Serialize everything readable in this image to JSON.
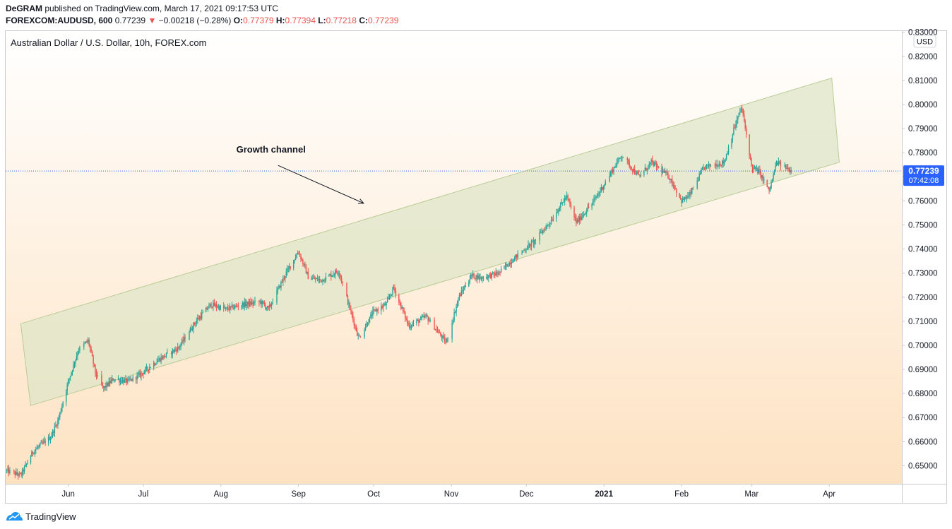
{
  "header": {
    "author": "DeGRAM",
    "published_text": "published on TradingView.com, March 17, 2021 09:17:53 UTC",
    "symbol": "FOREXCOM:AUDUSD, 600",
    "last": "0.77239",
    "change": "−0.00218 (−0.28%)",
    "o_label": "O:",
    "o": "0.77379",
    "h_label": "H:",
    "h": "0.77394",
    "l_label": "L:",
    "l": "0.77218",
    "c_label": "C:",
    "c": "0.77239"
  },
  "footer": {
    "brand": "TradingView"
  },
  "colors": {
    "up": "#26a69a",
    "down": "#ef5350",
    "channel_fill": "#dfe6c8",
    "channel_stroke": "#b9cc97",
    "bg_top": "#ffffff",
    "bg_bottom": "#fde2c2",
    "price_tag": "#2962ff",
    "price_line": "#2962ff"
  },
  "chart_data": {
    "type": "candlestick",
    "title": "Australian Dollar / U.S. Dollar, 10h, FOREX.com",
    "currency": "USD",
    "ylim": [
      0.6425,
      0.8305
    ],
    "y_ticks": [
      "0.65000",
      "0.66000",
      "0.67000",
      "0.68000",
      "0.69000",
      "0.70000",
      "0.71000",
      "0.72000",
      "0.73000",
      "0.74000",
      "0.75000",
      "0.76000",
      "0.77000",
      "0.78000",
      "0.79000",
      "0.80000",
      "0.81000",
      "0.82000",
      "0.83000"
    ],
    "x_ticks": [
      {
        "label": "Jun",
        "date": "2020-06-01"
      },
      {
        "label": "Jul",
        "date": "2020-07-01"
      },
      {
        "label": "Aug",
        "date": "2020-08-01"
      },
      {
        "label": "Sep",
        "date": "2020-09-01"
      },
      {
        "label": "Oct",
        "date": "2020-10-01"
      },
      {
        "label": "Nov",
        "date": "2020-11-01"
      },
      {
        "label": "Dec",
        "date": "2020-12-01"
      },
      {
        "label": "2021",
        "date": "2021-01-01"
      },
      {
        "label": "Feb",
        "date": "2021-02-01"
      },
      {
        "label": "Mar",
        "date": "2021-03-01"
      },
      {
        "label": "Apr",
        "date": "2021-04-01"
      }
    ],
    "xlim": [
      "2020-05-07",
      "2021-04-30"
    ],
    "price_path": [
      {
        "date": "2020-05-07",
        "close": 0.648
      },
      {
        "date": "2020-05-13",
        "close": 0.646
      },
      {
        "date": "2020-05-18",
        "close": 0.656
      },
      {
        "date": "2020-05-25",
        "close": 0.662
      },
      {
        "date": "2020-05-28",
        "close": 0.669
      },
      {
        "date": "2020-06-01",
        "close": 0.685
      },
      {
        "date": "2020-06-05",
        "close": 0.698
      },
      {
        "date": "2020-06-09",
        "close": 0.702
      },
      {
        "date": "2020-06-12",
        "close": 0.688
      },
      {
        "date": "2020-06-15",
        "close": 0.682
      },
      {
        "date": "2020-06-19",
        "close": 0.686
      },
      {
        "date": "2020-06-25",
        "close": 0.685
      },
      {
        "date": "2020-06-30",
        "close": 0.688
      },
      {
        "date": "2020-07-07",
        "close": 0.694
      },
      {
        "date": "2020-07-15",
        "close": 0.699
      },
      {
        "date": "2020-07-22",
        "close": 0.71
      },
      {
        "date": "2020-07-28",
        "close": 0.717
      },
      {
        "date": "2020-08-03",
        "close": 0.715
      },
      {
        "date": "2020-08-10",
        "close": 0.717
      },
      {
        "date": "2020-08-17",
        "close": 0.718
      },
      {
        "date": "2020-08-20",
        "close": 0.715
      },
      {
        "date": "2020-08-27",
        "close": 0.73
      },
      {
        "date": "2020-09-01",
        "close": 0.739
      },
      {
        "date": "2020-09-05",
        "close": 0.728
      },
      {
        "date": "2020-09-10",
        "close": 0.727
      },
      {
        "date": "2020-09-17",
        "close": 0.731
      },
      {
        "date": "2020-09-21",
        "close": 0.717
      },
      {
        "date": "2020-09-25",
        "close": 0.703
      },
      {
        "date": "2020-10-01",
        "close": 0.714
      },
      {
        "date": "2020-10-06",
        "close": 0.717
      },
      {
        "date": "2020-10-09",
        "close": 0.724
      },
      {
        "date": "2020-10-15",
        "close": 0.708
      },
      {
        "date": "2020-10-22",
        "close": 0.712
      },
      {
        "date": "2020-10-30",
        "close": 0.701
      },
      {
        "date": "2020-11-04",
        "close": 0.72
      },
      {
        "date": "2020-11-09",
        "close": 0.729
      },
      {
        "date": "2020-11-13",
        "close": 0.728
      },
      {
        "date": "2020-11-20",
        "close": 0.73
      },
      {
        "date": "2020-11-27",
        "close": 0.737
      },
      {
        "date": "2020-12-04",
        "close": 0.743
      },
      {
        "date": "2020-12-11",
        "close": 0.752
      },
      {
        "date": "2020-12-17",
        "close": 0.762
      },
      {
        "date": "2020-12-21",
        "close": 0.751
      },
      {
        "date": "2020-12-28",
        "close": 0.76
      },
      {
        "date": "2021-01-04",
        "close": 0.772
      },
      {
        "date": "2021-01-08",
        "close": 0.779
      },
      {
        "date": "2021-01-15",
        "close": 0.77
      },
      {
        "date": "2021-01-20",
        "close": 0.776
      },
      {
        "date": "2021-01-27",
        "close": 0.77
      },
      {
        "date": "2021-02-01",
        "close": 0.76
      },
      {
        "date": "2021-02-04",
        "close": 0.762
      },
      {
        "date": "2021-02-10",
        "close": 0.774
      },
      {
        "date": "2021-02-18",
        "close": 0.776
      },
      {
        "date": "2021-02-22",
        "close": 0.79
      },
      {
        "date": "2021-02-25",
        "close": 0.799
      },
      {
        "date": "2021-03-01",
        "close": 0.774
      },
      {
        "date": "2021-03-04",
        "close": 0.772
      },
      {
        "date": "2021-03-08",
        "close": 0.764
      },
      {
        "date": "2021-03-11",
        "close": 0.776
      },
      {
        "date": "2021-03-17",
        "close": 0.7724
      }
    ],
    "last_price": "0.77239",
    "countdown": "07:42:08",
    "channel": {
      "lower_start": {
        "date": "2020-05-17",
        "price": 0.675
      },
      "lower_end": {
        "date": "2021-04-05",
        "price": 0.776
      },
      "upper_start": {
        "date": "2020-05-13",
        "price": 0.709
      },
      "upper_end": {
        "date": "2021-04-02",
        "price": 0.811
      }
    },
    "annotation": {
      "text": "Growth channel",
      "anchor_date": "2020-08-21",
      "anchor_price": 0.78,
      "arrow_to_date": "2020-09-27",
      "arrow_to_price": 0.759
    }
  }
}
